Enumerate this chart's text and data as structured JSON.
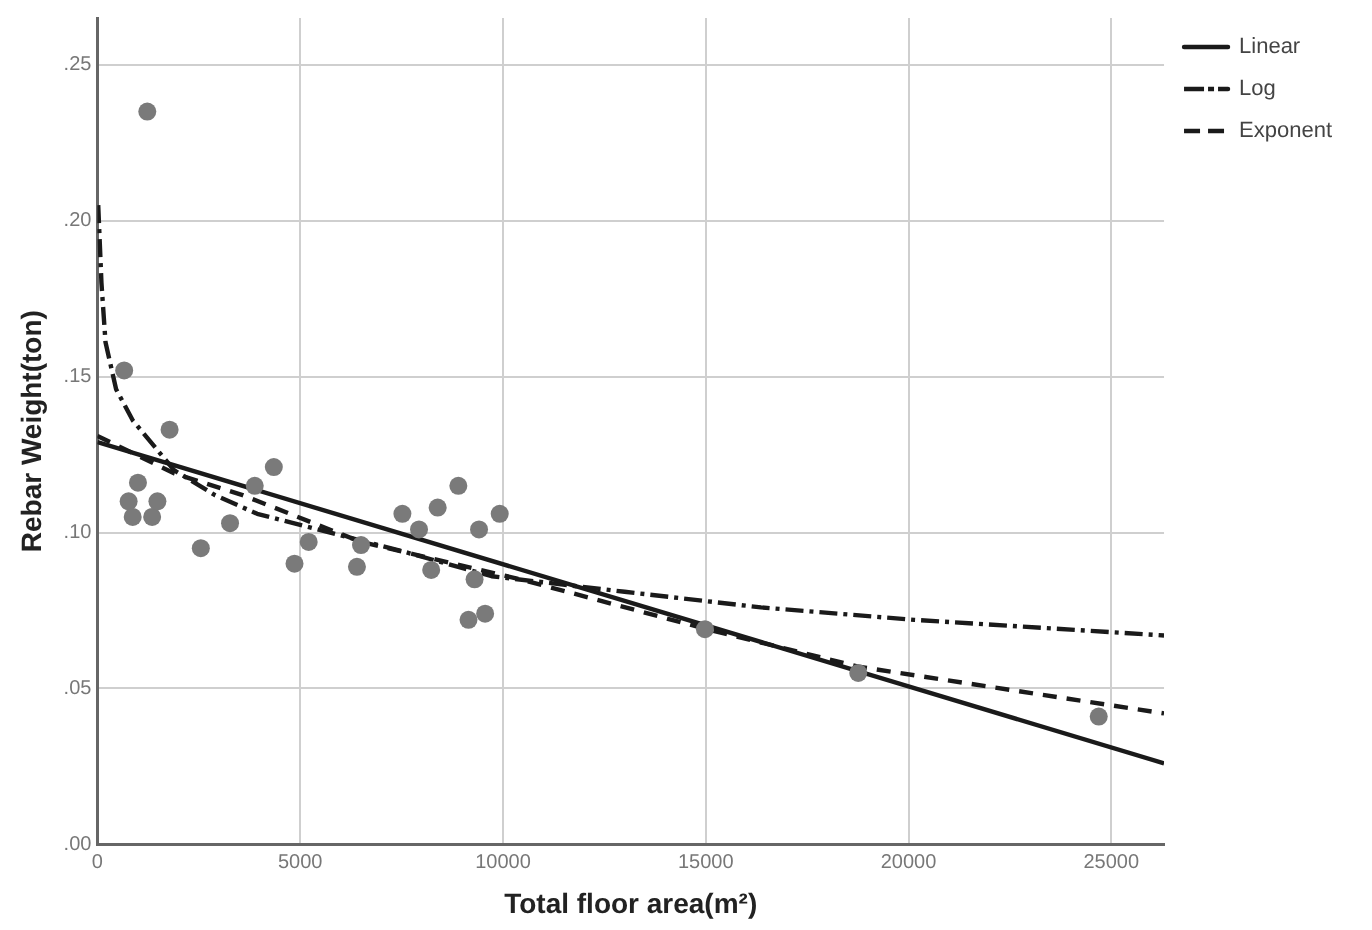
{
  "chart_data": {
    "type": "scatter",
    "xlabel": "Total floor area(m²)",
    "ylabel": "Rebar Weight(ton)",
    "xlim": [
      0,
      26300
    ],
    "xticks": [
      0,
      5000,
      10000,
      15000,
      20000,
      25000
    ],
    "ylim": [
      0,
      0.265
    ],
    "yticks": [
      {
        "value": 0,
        "label": ".00"
      },
      {
        "value": 0.05,
        "label": ".05"
      },
      {
        "value": 0.1,
        "label": ".10"
      },
      {
        "value": 0.15,
        "label": ".15"
      },
      {
        "value": 0.2,
        "label": ".20"
      },
      {
        "value": 0.25,
        "label": ".25"
      }
    ],
    "grid": true,
    "legend": "top right",
    "series": [
      {
        "type": "scatter",
        "color": "#7a7a7a",
        "marker": "circle",
        "x": [
          660,
          770,
          870,
          1000,
          1230,
          1350,
          1480,
          1780,
          2550,
          3270,
          3880,
          4350,
          4860,
          5210,
          6400,
          6500,
          7520,
          7930,
          8230,
          8390,
          8900,
          9150,
          9300,
          9410,
          9560,
          9920,
          14980,
          18760,
          24690
        ],
        "values": [
          0.152,
          0.11,
          0.105,
          0.116,
          0.235,
          0.105,
          0.11,
          0.133,
          0.095,
          0.103,
          0.115,
          0.121,
          0.09,
          0.097,
          0.089,
          0.096,
          0.106,
          0.101,
          0.088,
          0.108,
          0.115,
          0.072,
          0.085,
          0.101,
          0.074,
          0.106,
          0.069,
          0.055,
          0.041
        ]
      },
      {
        "type": "line",
        "name": "Linear",
        "color": "#1a1a1a",
        "line_style": "solid",
        "marker": "none",
        "x": [
          0,
          26300
        ],
        "values": [
          0.129,
          0.026
        ]
      },
      {
        "type": "line",
        "name": "Log",
        "color": "#1a1a1a",
        "line_style": "dotted",
        "marker": "none",
        "x": [
          20,
          100,
          200,
          460,
          870,
          1890,
          2900,
          3940,
          7520,
          9720,
          13000,
          16360,
          20140,
          26300
        ],
        "values": [
          0.205,
          0.18,
          0.161,
          0.146,
          0.136,
          0.12,
          0.112,
          0.106,
          0.094,
          0.086,
          0.081,
          0.076,
          0.072,
          0.067
        ]
      },
      {
        "type": "line",
        "name": "Exponent",
        "color": "#1a1a1a",
        "line_style": "dashed",
        "marker": "none",
        "x": [
          0,
          1890,
          3580,
          6500,
          10430,
          15030,
          18760,
          26300
        ],
        "values": [
          0.131,
          0.119,
          0.112,
          0.097,
          0.085,
          0.069,
          0.057,
          0.042
        ]
      }
    ]
  }
}
